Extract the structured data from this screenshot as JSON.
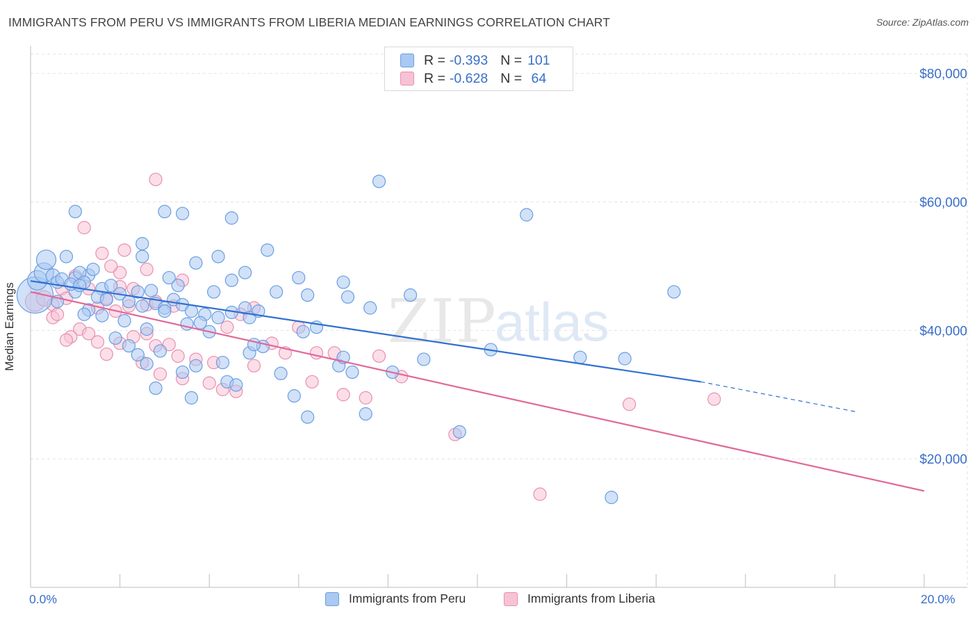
{
  "title": "IMMIGRANTS FROM PERU VS IMMIGRANTS FROM LIBERIA MEDIAN EARNINGS CORRELATION CHART",
  "source": "Source: ZipAtlas.com",
  "watermark": {
    "zip": "ZIP",
    "atlas": "atlas"
  },
  "colors": {
    "peru_fill": "#a9c9f2",
    "peru_stroke": "#6a9ee0",
    "peru_line": "#2f6fd0",
    "liberia_fill": "#f7c2d5",
    "liberia_stroke": "#e88fb0",
    "liberia_line": "#e06898",
    "tick_text": "#3a6fc8",
    "grid": "#e2e2e2"
  },
  "legend_top": [
    {
      "r_label": "R =",
      "r_value": "-0.393",
      "n_label": "N =",
      "n_value": "101"
    },
    {
      "r_label": "R =",
      "r_value": "-0.628",
      "n_label": "N =",
      "n_value": " 64"
    }
  ],
  "bottom_legend": [
    "Immigrants from Peru",
    "Immigrants from Liberia"
  ],
  "chart_data": {
    "type": "scatter",
    "title": "IMMIGRANTS FROM PERU VS IMMIGRANTS FROM LIBERIA MEDIAN EARNINGS CORRELATION CHART",
    "xlabel": "",
    "ylabel": "Median Earnings",
    "xlim": [
      0,
      20
    ],
    "ylim": [
      0,
      83000
    ],
    "x_tick_labels": [
      "0.0%",
      "20.0%"
    ],
    "y_ticks": [
      20000,
      40000,
      60000,
      80000
    ],
    "y_tick_labels": [
      "$20,000",
      "$40,000",
      "$60,000",
      "$80,000"
    ],
    "grid": true,
    "legend_position": "top-center",
    "series": [
      {
        "name": "Immigrants from Peru",
        "trend": {
          "x0": 0,
          "y0": 47700,
          "x1": 15.0,
          "y1": 32000,
          "dash_to_x": 18.5,
          "dash_to_y": 27300
        },
        "points": [
          [
            0.1,
            45500,
            26
          ],
          [
            0.15,
            47800,
            14
          ],
          [
            0.3,
            49000,
            14
          ],
          [
            0.35,
            51000,
            14
          ],
          [
            0.5,
            48500,
            10
          ],
          [
            0.6,
            47500,
            9
          ],
          [
            0.8,
            51500,
            9
          ],
          [
            0.7,
            48000,
            9
          ],
          [
            1.0,
            48200,
            9
          ],
          [
            1.3,
            48600,
            9
          ],
          [
            1.1,
            49000,
            9
          ],
          [
            1.2,
            47500,
            9
          ],
          [
            1.0,
            46000,
            9
          ],
          [
            1.4,
            49500,
            9
          ],
          [
            0.9,
            47200,
            9
          ],
          [
            1.6,
            46500,
            9
          ],
          [
            1.8,
            47000,
            9
          ],
          [
            1.5,
            45200,
            9
          ],
          [
            1.7,
            44800,
            9
          ],
          [
            2.0,
            45700,
            9
          ],
          [
            2.2,
            44500,
            9
          ],
          [
            2.4,
            46000,
            9
          ],
          [
            1.3,
            43200,
            9
          ],
          [
            1.6,
            42300,
            9
          ],
          [
            1.2,
            42500,
            9
          ],
          [
            2.1,
            41500,
            9
          ],
          [
            2.5,
            43800,
            9
          ],
          [
            2.8,
            44200,
            9
          ],
          [
            3.0,
            43500,
            9
          ],
          [
            3.2,
            44800,
            9
          ],
          [
            3.4,
            44000,
            9
          ],
          [
            3.6,
            43000,
            9
          ],
          [
            3.9,
            42500,
            9
          ],
          [
            4.2,
            42000,
            9
          ],
          [
            4.5,
            42800,
            9
          ],
          [
            3.5,
            41000,
            9
          ],
          [
            3.8,
            41200,
            9
          ],
          [
            4.0,
            39800,
            9
          ],
          [
            2.7,
            46200,
            9
          ],
          [
            3.3,
            47000,
            9
          ],
          [
            4.1,
            46000,
            9
          ],
          [
            4.5,
            47800,
            9
          ],
          [
            4.8,
            49000,
            9
          ],
          [
            5.5,
            46000,
            9
          ],
          [
            6.2,
            45500,
            9
          ],
          [
            6.0,
            48200,
            9
          ],
          [
            7.0,
            47500,
            9
          ],
          [
            7.1,
            45200,
            9
          ],
          [
            8.5,
            45500,
            9
          ],
          [
            7.6,
            43500,
            9
          ],
          [
            6.4,
            40500,
            9
          ],
          [
            6.1,
            39800,
            9
          ],
          [
            5.2,
            37500,
            9
          ],
          [
            4.9,
            36500,
            9
          ],
          [
            4.3,
            35000,
            9
          ],
          [
            3.7,
            34500,
            9
          ],
          [
            3.4,
            33500,
            9
          ],
          [
            2.6,
            34800,
            9
          ],
          [
            2.4,
            36200,
            9
          ],
          [
            1.9,
            38800,
            9
          ],
          [
            2.9,
            36800,
            9
          ],
          [
            2.8,
            31000,
            9
          ],
          [
            3.6,
            29500,
            9
          ],
          [
            4.4,
            32000,
            9
          ],
          [
            4.6,
            31500,
            9
          ],
          [
            5.9,
            29800,
            9
          ],
          [
            5.6,
            33300,
            9
          ],
          [
            6.9,
            34500,
            9
          ],
          [
            7.0,
            35800,
            9
          ],
          [
            7.2,
            33500,
            9
          ],
          [
            8.1,
            33500,
            9
          ],
          [
            8.8,
            35500,
            9
          ],
          [
            7.5,
            27000,
            9
          ],
          [
            6.2,
            26500,
            9
          ],
          [
            9.6,
            24200,
            9
          ],
          [
            10.3,
            37000,
            9
          ],
          [
            12.3,
            35800,
            9
          ],
          [
            13.3,
            35600,
            9
          ],
          [
            14.4,
            46000,
            9
          ],
          [
            11.1,
            58000,
            9
          ],
          [
            7.8,
            63200,
            9
          ],
          [
            1.0,
            58500,
            9
          ],
          [
            3.0,
            58500,
            9
          ],
          [
            3.4,
            58200,
            9
          ],
          [
            4.5,
            57500,
            9
          ],
          [
            2.5,
            53500,
            9
          ],
          [
            2.5,
            51500,
            9
          ],
          [
            4.2,
            51500,
            9
          ],
          [
            3.7,
            50500,
            9
          ],
          [
            5.3,
            52500,
            9
          ],
          [
            3.1,
            48200,
            9
          ],
          [
            4.8,
            43500,
            9
          ],
          [
            13.0,
            14000,
            9
          ],
          [
            0.6,
            44500,
            9
          ],
          [
            1.1,
            47000,
            9
          ],
          [
            2.6,
            40200,
            9
          ],
          [
            4.9,
            42000,
            9
          ],
          [
            5.1,
            43000,
            9
          ],
          [
            2.2,
            37600,
            9
          ],
          [
            3.0,
            43000,
            9
          ],
          [
            5.0,
            37800,
            9
          ]
        ]
      },
      {
        "name": "Immigrants from Liberia",
        "trend": {
          "x0": 0,
          "y0": 46000,
          "x1": 20.0,
          "y1": 15000
        },
        "points": [
          [
            0.1,
            44500,
            14
          ],
          [
            0.3,
            45000,
            11
          ],
          [
            0.5,
            44000,
            9
          ],
          [
            0.7,
            46500,
            9
          ],
          [
            0.8,
            45000,
            9
          ],
          [
            1.0,
            48500,
            9
          ],
          [
            1.3,
            46500,
            9
          ],
          [
            1.7,
            45000,
            9
          ],
          [
            2.0,
            46800,
            9
          ],
          [
            2.3,
            46500,
            9
          ],
          [
            2.6,
            44000,
            9
          ],
          [
            1.5,
            43500,
            9
          ],
          [
            1.9,
            43000,
            9
          ],
          [
            2.2,
            43800,
            9
          ],
          [
            2.8,
            44500,
            9
          ],
          [
            3.2,
            43800,
            9
          ],
          [
            0.5,
            42000,
            9
          ],
          [
            0.6,
            42500,
            9
          ],
          [
            1.1,
            40200,
            9
          ],
          [
            1.3,
            39500,
            9
          ],
          [
            1.5,
            38200,
            9
          ],
          [
            0.9,
            39000,
            9
          ],
          [
            1.7,
            36300,
            9
          ],
          [
            2.0,
            38000,
            9
          ],
          [
            2.3,
            39000,
            9
          ],
          [
            2.6,
            39500,
            9
          ],
          [
            2.8,
            37600,
            9
          ],
          [
            3.1,
            37800,
            9
          ],
          [
            3.3,
            36000,
            9
          ],
          [
            3.7,
            35500,
            9
          ],
          [
            4.1,
            35000,
            9
          ],
          [
            4.4,
            40500,
            9
          ],
          [
            4.7,
            42500,
            9
          ],
          [
            5.0,
            43500,
            9
          ],
          [
            5.4,
            38000,
            9
          ],
          [
            5.7,
            36500,
            9
          ],
          [
            6.0,
            40500,
            9
          ],
          [
            6.4,
            36500,
            9
          ],
          [
            6.8,
            36500,
            9
          ],
          [
            2.5,
            35000,
            9
          ],
          [
            2.9,
            33200,
            9
          ],
          [
            3.4,
            32500,
            9
          ],
          [
            4.0,
            31800,
            9
          ],
          [
            4.3,
            30800,
            9
          ],
          [
            4.6,
            30500,
            9
          ],
          [
            5.0,
            34500,
            9
          ],
          [
            6.3,
            32000,
            9
          ],
          [
            7.0,
            30000,
            9
          ],
          [
            7.5,
            29500,
            9
          ],
          [
            7.8,
            36000,
            9
          ],
          [
            8.3,
            32800,
            9
          ],
          [
            1.2,
            56000,
            9
          ],
          [
            1.6,
            52000,
            9
          ],
          [
            2.1,
            52500,
            9
          ],
          [
            2.0,
            49000,
            9
          ],
          [
            2.6,
            49500,
            9
          ],
          [
            3.4,
            47800,
            9
          ],
          [
            1.8,
            50000,
            9
          ],
          [
            2.8,
            63500,
            9
          ],
          [
            9.5,
            23800,
            9
          ],
          [
            11.4,
            14500,
            9
          ],
          [
            13.4,
            28500,
            9
          ],
          [
            15.3,
            29300,
            9
          ],
          [
            0.8,
            38500,
            9
          ]
        ]
      }
    ]
  }
}
